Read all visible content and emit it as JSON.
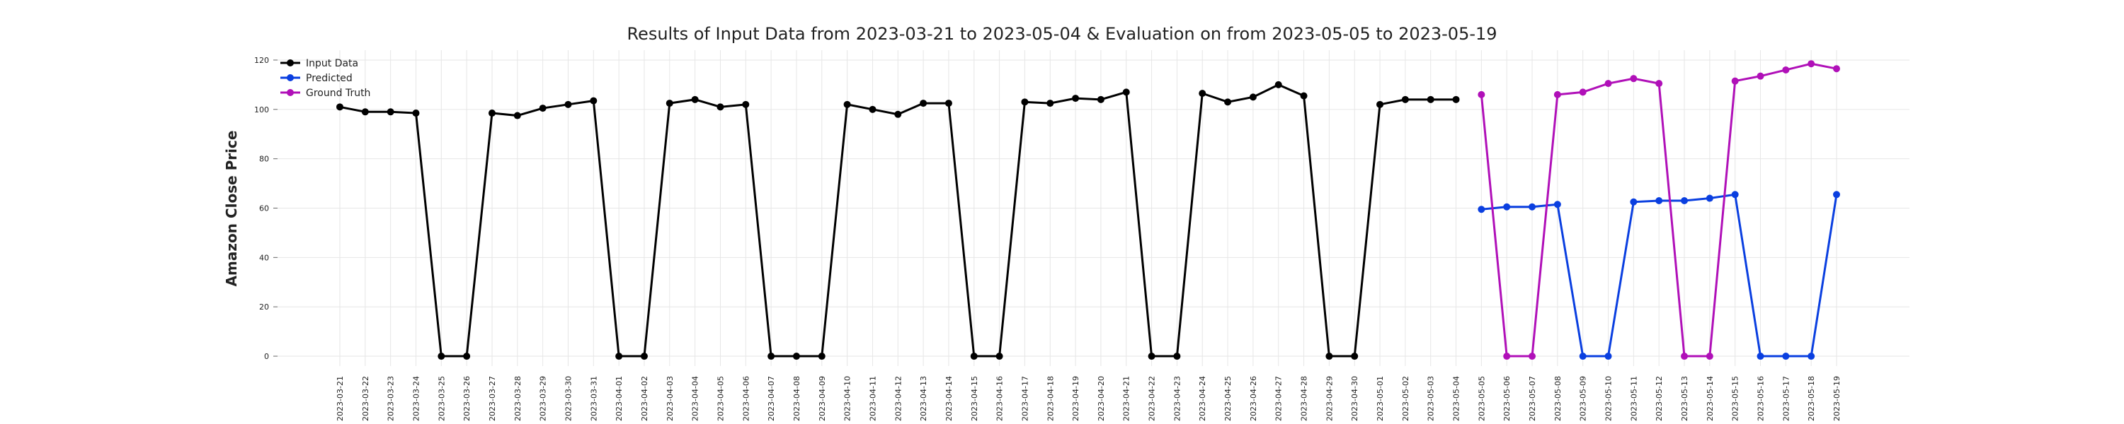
{
  "chart_data": {
    "type": "line",
    "title": "Results of Input Data from 2023-03-21 to 2023-05-04 & Evaluation on from 2023-05-05 to 2023-05-19",
    "y_label": "Amazon Close Price",
    "x": [
      "2023-03-21",
      "2023-03-22",
      "2023-03-23",
      "2023-03-24",
      "2023-03-25",
      "2023-03-26",
      "2023-03-27",
      "2023-03-28",
      "2023-03-29",
      "2023-03-30",
      "2023-03-31",
      "2023-04-01",
      "2023-04-02",
      "2023-04-03",
      "2023-04-04",
      "2023-04-05",
      "2023-04-06",
      "2023-04-07",
      "2023-04-08",
      "2023-04-09",
      "2023-04-10",
      "2023-04-11",
      "2023-04-12",
      "2023-04-13",
      "2023-04-14",
      "2023-04-15",
      "2023-04-16",
      "2023-04-17",
      "2023-04-18",
      "2023-04-19",
      "2023-04-20",
      "2023-04-21",
      "2023-04-22",
      "2023-04-23",
      "2023-04-24",
      "2023-04-25",
      "2023-04-26",
      "2023-04-27",
      "2023-04-28",
      "2023-04-29",
      "2023-04-30",
      "2023-05-01",
      "2023-05-02",
      "2023-05-03",
      "2023-05-04",
      "2023-05-05",
      "2023-05-06",
      "2023-05-07",
      "2023-05-08",
      "2023-05-09",
      "2023-05-10",
      "2023-05-11",
      "2023-05-12",
      "2023-05-13",
      "2023-05-14",
      "2023-05-15",
      "2023-05-16",
      "2023-05-17",
      "2023-05-18",
      "2023-05-19"
    ],
    "series": [
      {
        "name": "Input Data",
        "color": "#000000",
        "values": [
          101,
          99,
          99,
          98.5,
          0,
          0,
          98.5,
          97.5,
          100.5,
          102,
          103.5,
          0,
          0,
          102.5,
          104,
          101,
          102,
          0,
          0,
          0,
          102,
          100,
          98,
          102.5,
          102.5,
          0,
          0,
          103,
          102.5,
          104.5,
          104,
          107,
          0,
          0,
          106.5,
          103,
          105,
          110,
          105.5,
          0,
          0,
          102,
          104,
          104,
          104,
          null,
          null,
          null,
          null,
          null,
          null,
          null,
          null,
          null,
          null,
          null,
          null,
          null,
          null,
          null
        ]
      },
      {
        "name": "Predicted",
        "color": "#0a3fe0",
        "values": [
          null,
          null,
          null,
          null,
          null,
          null,
          null,
          null,
          null,
          null,
          null,
          null,
          null,
          null,
          null,
          null,
          null,
          null,
          null,
          null,
          null,
          null,
          null,
          null,
          null,
          null,
          null,
          null,
          null,
          null,
          null,
          null,
          null,
          null,
          null,
          null,
          null,
          null,
          null,
          null,
          null,
          null,
          null,
          null,
          null,
          59.5,
          60.5,
          60.5,
          61.5,
          0,
          0,
          62.5,
          63,
          63,
          64,
          65.5,
          0,
          0,
          0,
          65.5
        ]
      },
      {
        "name": "Ground Truth",
        "color": "#b010b8",
        "values": [
          null,
          null,
          null,
          null,
          null,
          null,
          null,
          null,
          null,
          null,
          null,
          null,
          null,
          null,
          null,
          null,
          null,
          null,
          null,
          null,
          null,
          null,
          null,
          null,
          null,
          null,
          null,
          null,
          null,
          null,
          null,
          null,
          null,
          null,
          null,
          null,
          null,
          null,
          null,
          null,
          null,
          null,
          null,
          null,
          null,
          106,
          0,
          0,
          106,
          107,
          110.5,
          112.5,
          110.5,
          0,
          0,
          111.5,
          113.5,
          116,
          118.5,
          116.5
        ]
      }
    ],
    "ylim": [
      -4,
      124
    ],
    "yticks": [
      0,
      20,
      40,
      60,
      80,
      100,
      120
    ],
    "grid": true,
    "legend": "upper left"
  }
}
